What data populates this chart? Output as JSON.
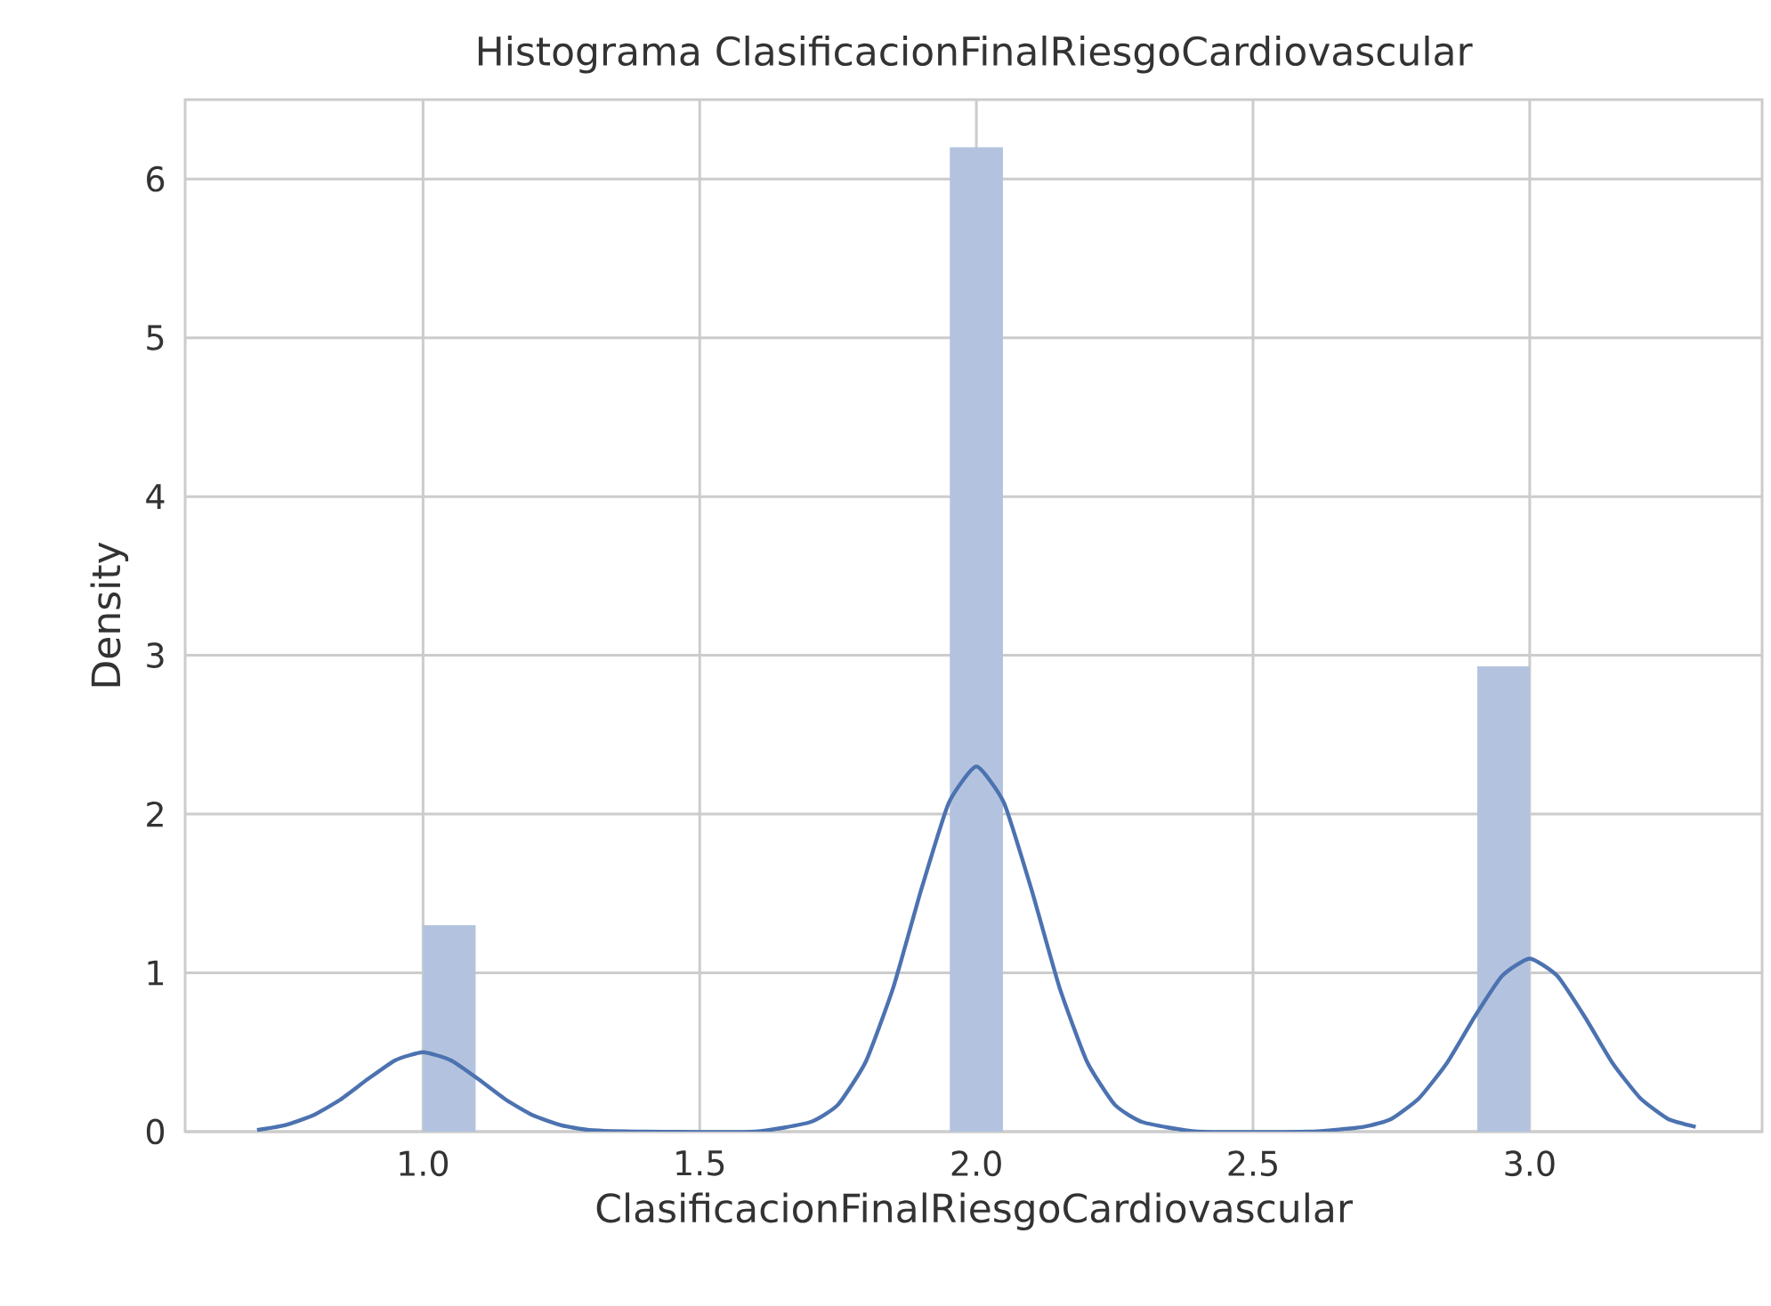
{
  "chart_data": {
    "type": "histogram",
    "title": "Histograma ClasificacionFinalRiesgoCardiovascular",
    "xlabel": "ClasificacionFinalRiesgoCardiovascular",
    "ylabel": "Density",
    "bins": [
      1.0,
      1.095,
      1.952,
      2.048,
      2.905,
      3.0
    ],
    "values": [
      1.3,
      0,
      6.2,
      0,
      2.93
    ],
    "color": "#b3c3df",
    "series": [
      {
        "type": "line",
        "color": "#4c72b0",
        "x": [
          0.7,
          0.75,
          0.8,
          0.85,
          0.9,
          0.95,
          1.0,
          1.05,
          1.1,
          1.15,
          1.2,
          1.25,
          1.3,
          1.4,
          1.6,
          1.7,
          1.75,
          1.8,
          1.85,
          1.9,
          1.95,
          2.0,
          2.05,
          2.1,
          2.15,
          2.2,
          2.25,
          2.3,
          2.4,
          2.6,
          2.7,
          2.75,
          2.8,
          2.85,
          2.9,
          2.95,
          3.0,
          3.05,
          3.1,
          3.15,
          3.2,
          3.25,
          3.3
        ],
        "values": [
          0.01,
          0.04,
          0.1,
          0.2,
          0.33,
          0.45,
          0.5,
          0.45,
          0.33,
          0.2,
          0.1,
          0.04,
          0.01,
          0,
          0,
          0.06,
          0.17,
          0.44,
          0.91,
          1.52,
          2.07,
          2.3,
          2.07,
          1.52,
          0.91,
          0.44,
          0.17,
          0.06,
          0,
          0,
          0.03,
          0.08,
          0.21,
          0.43,
          0.72,
          0.98,
          1.09,
          0.98,
          0.72,
          0.43,
          0.21,
          0.08,
          0.03
        ]
      }
    ],
    "xlim": [
      0.57,
      3.42
    ],
    "ylim": [
      0,
      6.5
    ],
    "xticks": [
      {
        "value": 1.0,
        "label": "1.0"
      },
      {
        "value": 1.5,
        "label": "1.5"
      },
      {
        "value": 2.0,
        "label": "2.0"
      },
      {
        "value": 2.5,
        "label": "2.5"
      },
      {
        "value": 3.0,
        "label": "3.0"
      }
    ],
    "yticks": [
      0,
      1,
      2,
      3,
      4,
      5,
      6
    ],
    "grid": true
  }
}
